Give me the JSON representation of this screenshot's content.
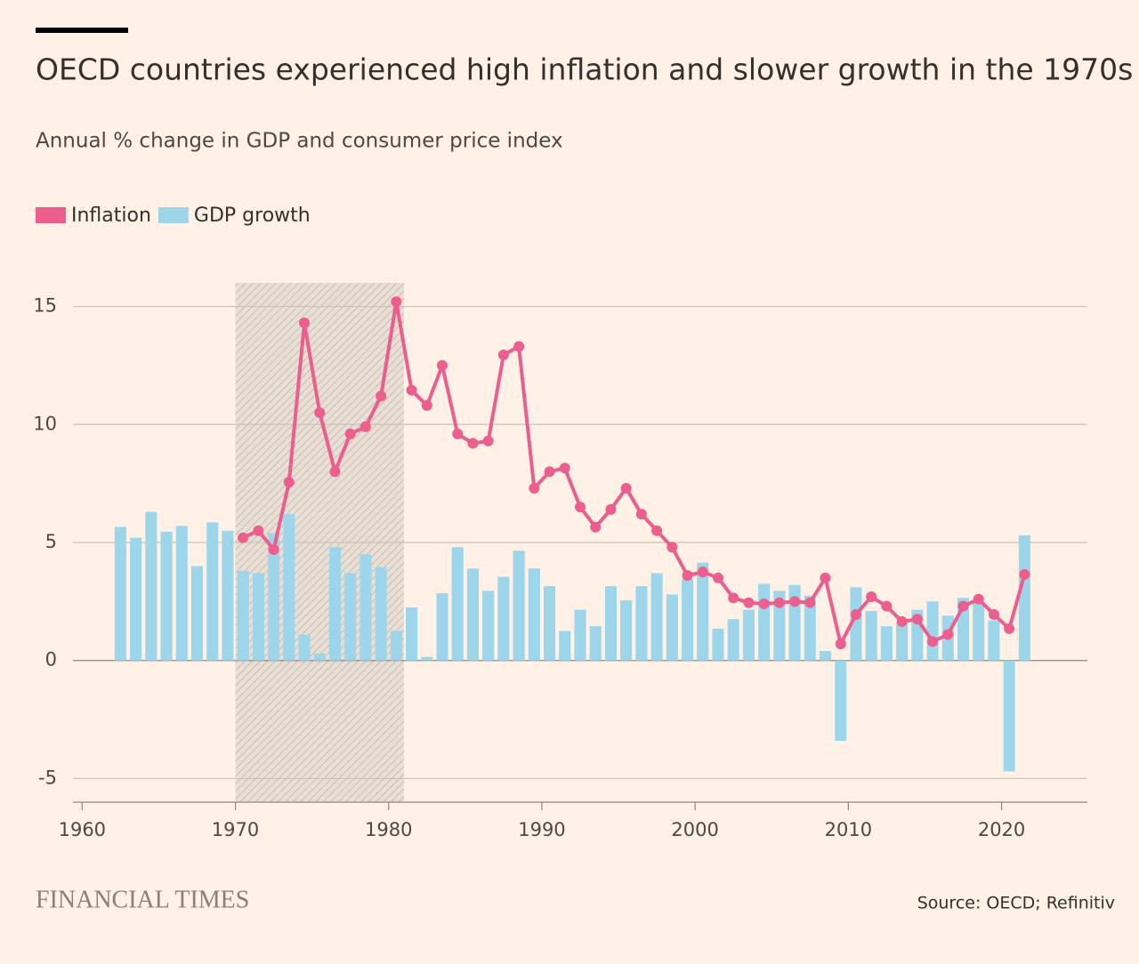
{
  "chart_data": {
    "type": "combo",
    "title": "OECD countries experienced high inflation and slower growth in the 1970s",
    "subtitle": "Annual % change in GDP and consumer price index",
    "publisher": "FINANCIAL TIMES",
    "source": "Source: OECD; Refinitiv",
    "x": [
      1962,
      1963,
      1964,
      1965,
      1966,
      1967,
      1968,
      1969,
      1970,
      1971,
      1972,
      1973,
      1974,
      1975,
      1976,
      1977,
      1978,
      1979,
      1980,
      1981,
      1982,
      1983,
      1984,
      1985,
      1986,
      1987,
      1988,
      1989,
      1990,
      1991,
      1992,
      1993,
      1994,
      1995,
      1996,
      1997,
      1998,
      1999,
      2000,
      2001,
      2002,
      2003,
      2004,
      2005,
      2006,
      2007,
      2008,
      2009,
      2010,
      2011,
      2012,
      2013,
      2014,
      2015,
      2016,
      2017,
      2018,
      2019,
      2020,
      2021
    ],
    "series": [
      {
        "name": "Inflation",
        "type": "line",
        "color": "#eb5e8d",
        "values": [
          null,
          null,
          null,
          null,
          null,
          null,
          null,
          null,
          5.2,
          5.5,
          4.7,
          7.55,
          14.3,
          10.5,
          8.0,
          9.6,
          9.9,
          11.2,
          15.2,
          11.45,
          10.8,
          12.5,
          9.6,
          9.2,
          9.3,
          12.95,
          13.3,
          7.3,
          8.0,
          8.15,
          6.5,
          5.65,
          6.4,
          7.3,
          6.2,
          5.5,
          4.8,
          3.6,
          3.75,
          3.5,
          2.65,
          2.45,
          2.4,
          2.45,
          2.5,
          2.45,
          3.5,
          0.7,
          1.95,
          2.7,
          2.3,
          1.65,
          1.75,
          0.8,
          1.1,
          2.3,
          2.6,
          1.95,
          1.35,
          3.65
        ]
      },
      {
        "name": "GDP growth",
        "type": "bar",
        "color": "#9dd6eb",
        "values": [
          5.66,
          5.2,
          6.3,
          5.45,
          5.7,
          4.0,
          5.85,
          5.5,
          3.8,
          3.7,
          5.4,
          6.2,
          1.1,
          0.3,
          4.8,
          3.7,
          4.5,
          3.95,
          1.25,
          2.25,
          0.15,
          2.85,
          4.8,
          3.9,
          2.95,
          3.55,
          4.65,
          3.9,
          3.15,
          1.25,
          2.15,
          1.45,
          3.15,
          2.55,
          3.15,
          3.7,
          2.8,
          3.45,
          4.15,
          1.35,
          1.75,
          2.15,
          3.25,
          2.95,
          3.2,
          2.75,
          0.4,
          -3.4,
          3.1,
          2.1,
          1.45,
          1.6,
          2.15,
          2.5,
          1.9,
          2.65,
          2.5,
          1.7,
          -4.7,
          5.3
        ]
      }
    ],
    "highlight": [
      1970,
      1980
    ],
    "xlim": [
      1959.4,
      2025.6
    ],
    "xticks": [
      1960,
      1970,
      1980,
      1990,
      2000,
      2010,
      2020
    ],
    "ylim": [
      -6,
      16
    ],
    "yticks": [
      -5,
      0,
      5,
      10,
      15
    ],
    "grid": true
  }
}
